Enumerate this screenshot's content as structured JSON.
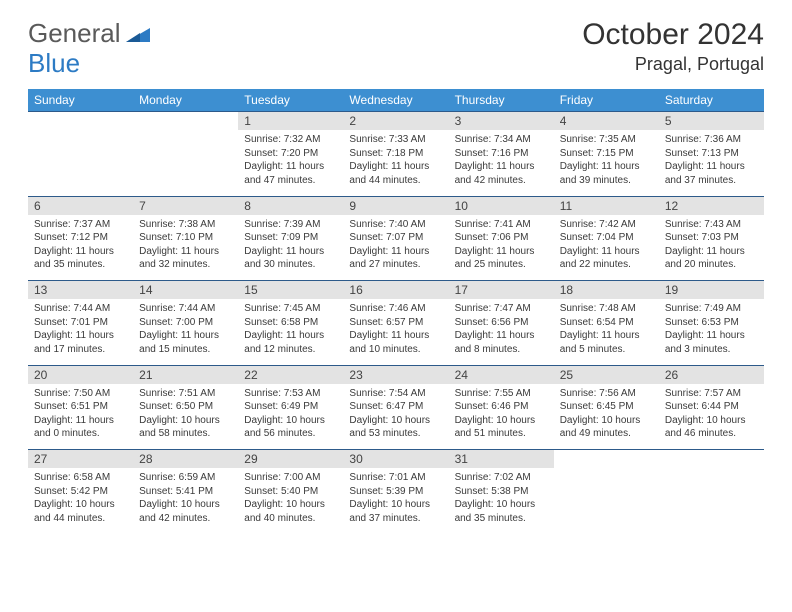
{
  "logo": {
    "part1": "General",
    "part2": "Blue"
  },
  "title": "October 2024",
  "location": "Pragal, Portugal",
  "colors": {
    "header_bg": "#3d8fd1",
    "daynum_bg": "#e3e3e3",
    "daynum_border": "#2d5a8a",
    "text": "#3a3a3a",
    "logo_gray": "#5a5a5a",
    "logo_blue": "#2d7bc4"
  },
  "weekdays": [
    "Sunday",
    "Monday",
    "Tuesday",
    "Wednesday",
    "Thursday",
    "Friday",
    "Saturday"
  ],
  "weeks": [
    [
      null,
      null,
      {
        "n": "1",
        "sr": "7:32 AM",
        "ss": "7:20 PM",
        "dl": "11 hours and 47 minutes."
      },
      {
        "n": "2",
        "sr": "7:33 AM",
        "ss": "7:18 PM",
        "dl": "11 hours and 44 minutes."
      },
      {
        "n": "3",
        "sr": "7:34 AM",
        "ss": "7:16 PM",
        "dl": "11 hours and 42 minutes."
      },
      {
        "n": "4",
        "sr": "7:35 AM",
        "ss": "7:15 PM",
        "dl": "11 hours and 39 minutes."
      },
      {
        "n": "5",
        "sr": "7:36 AM",
        "ss": "7:13 PM",
        "dl": "11 hours and 37 minutes."
      }
    ],
    [
      {
        "n": "6",
        "sr": "7:37 AM",
        "ss": "7:12 PM",
        "dl": "11 hours and 35 minutes."
      },
      {
        "n": "7",
        "sr": "7:38 AM",
        "ss": "7:10 PM",
        "dl": "11 hours and 32 minutes."
      },
      {
        "n": "8",
        "sr": "7:39 AM",
        "ss": "7:09 PM",
        "dl": "11 hours and 30 minutes."
      },
      {
        "n": "9",
        "sr": "7:40 AM",
        "ss": "7:07 PM",
        "dl": "11 hours and 27 minutes."
      },
      {
        "n": "10",
        "sr": "7:41 AM",
        "ss": "7:06 PM",
        "dl": "11 hours and 25 minutes."
      },
      {
        "n": "11",
        "sr": "7:42 AM",
        "ss": "7:04 PM",
        "dl": "11 hours and 22 minutes."
      },
      {
        "n": "12",
        "sr": "7:43 AM",
        "ss": "7:03 PM",
        "dl": "11 hours and 20 minutes."
      }
    ],
    [
      {
        "n": "13",
        "sr": "7:44 AM",
        "ss": "7:01 PM",
        "dl": "11 hours and 17 minutes."
      },
      {
        "n": "14",
        "sr": "7:44 AM",
        "ss": "7:00 PM",
        "dl": "11 hours and 15 minutes."
      },
      {
        "n": "15",
        "sr": "7:45 AM",
        "ss": "6:58 PM",
        "dl": "11 hours and 12 minutes."
      },
      {
        "n": "16",
        "sr": "7:46 AM",
        "ss": "6:57 PM",
        "dl": "11 hours and 10 minutes."
      },
      {
        "n": "17",
        "sr": "7:47 AM",
        "ss": "6:56 PM",
        "dl": "11 hours and 8 minutes."
      },
      {
        "n": "18",
        "sr": "7:48 AM",
        "ss": "6:54 PM",
        "dl": "11 hours and 5 minutes."
      },
      {
        "n": "19",
        "sr": "7:49 AM",
        "ss": "6:53 PM",
        "dl": "11 hours and 3 minutes."
      }
    ],
    [
      {
        "n": "20",
        "sr": "7:50 AM",
        "ss": "6:51 PM",
        "dl": "11 hours and 0 minutes."
      },
      {
        "n": "21",
        "sr": "7:51 AM",
        "ss": "6:50 PM",
        "dl": "10 hours and 58 minutes."
      },
      {
        "n": "22",
        "sr": "7:53 AM",
        "ss": "6:49 PM",
        "dl": "10 hours and 56 minutes."
      },
      {
        "n": "23",
        "sr": "7:54 AM",
        "ss": "6:47 PM",
        "dl": "10 hours and 53 minutes."
      },
      {
        "n": "24",
        "sr": "7:55 AM",
        "ss": "6:46 PM",
        "dl": "10 hours and 51 minutes."
      },
      {
        "n": "25",
        "sr": "7:56 AM",
        "ss": "6:45 PM",
        "dl": "10 hours and 49 minutes."
      },
      {
        "n": "26",
        "sr": "7:57 AM",
        "ss": "6:44 PM",
        "dl": "10 hours and 46 minutes."
      }
    ],
    [
      {
        "n": "27",
        "sr": "6:58 AM",
        "ss": "5:42 PM",
        "dl": "10 hours and 44 minutes."
      },
      {
        "n": "28",
        "sr": "6:59 AM",
        "ss": "5:41 PM",
        "dl": "10 hours and 42 minutes."
      },
      {
        "n": "29",
        "sr": "7:00 AM",
        "ss": "5:40 PM",
        "dl": "10 hours and 40 minutes."
      },
      {
        "n": "30",
        "sr": "7:01 AM",
        "ss": "5:39 PM",
        "dl": "10 hours and 37 minutes."
      },
      {
        "n": "31",
        "sr": "7:02 AM",
        "ss": "5:38 PM",
        "dl": "10 hours and 35 minutes."
      },
      null,
      null
    ]
  ],
  "labels": {
    "sunrise": "Sunrise:",
    "sunset": "Sunset:",
    "daylight": "Daylight:"
  }
}
